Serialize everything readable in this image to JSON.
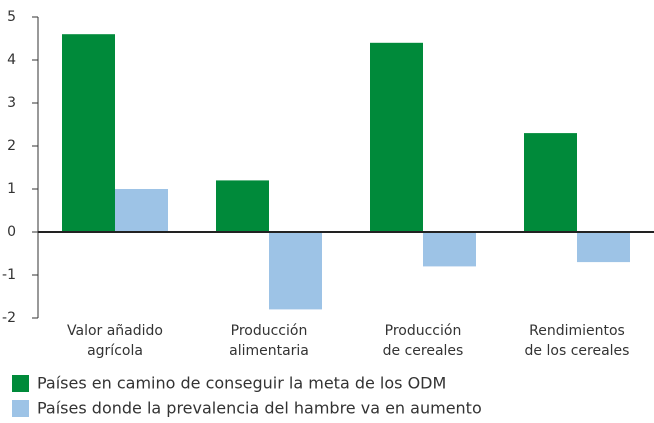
{
  "chart_data": {
    "type": "bar",
    "categories": [
      "Valor añadido\nagrícola",
      "Producción\nalimentaria",
      "Producción\nde cereales",
      "Rendimientos\nde los cereales"
    ],
    "series": [
      {
        "name": "Países en camino de conseguir la meta de los ODM",
        "color": "#008a3a",
        "values": [
          4.6,
          1.2,
          4.4,
          2.3
        ]
      },
      {
        "name": "Países donde la prevalencia del hambre va en aumento",
        "color": "#9dc3e6",
        "values": [
          1.0,
          -1.8,
          -0.8,
          -0.7
        ]
      }
    ],
    "ylim": [
      -2,
      5
    ],
    "yticks": [
      -2,
      -1,
      0,
      1,
      2,
      3,
      4,
      5
    ],
    "grid": false,
    "legend": "bottom"
  }
}
